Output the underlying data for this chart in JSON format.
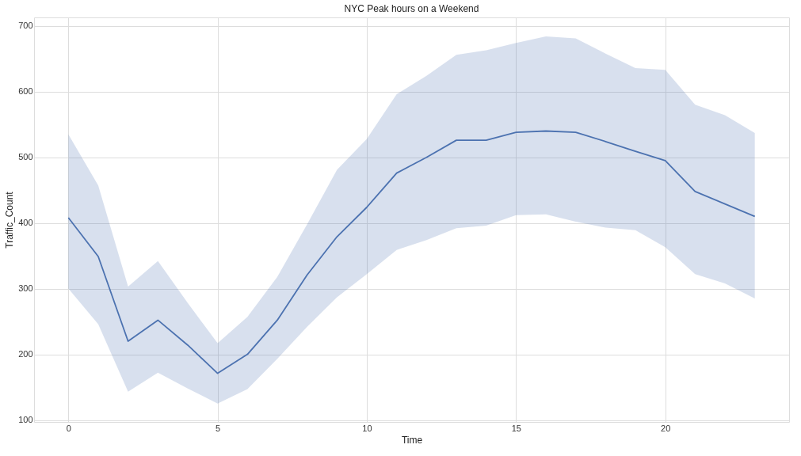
{
  "chart_data": {
    "type": "line",
    "title": "NYC Peak hours on a Weekend",
    "xlabel": "Time",
    "ylabel": "Traffic_Count",
    "x": [
      0,
      1,
      2,
      3,
      4,
      5,
      6,
      7,
      8,
      9,
      10,
      11,
      12,
      13,
      14,
      15,
      16,
      17,
      18,
      19,
      20,
      21,
      22,
      23
    ],
    "series": [
      {
        "color": "#4c72b0",
        "values": [
          408,
          349,
          220,
          252,
          214,
          171,
          200,
          252,
          321,
          379,
          424,
          476,
          500,
          526,
          526,
          538,
          540,
          538,
          524,
          509,
          495,
          448,
          429,
          410
        ],
        "lower": [
          300,
          246,
          143,
          172,
          148,
          125,
          147,
          193,
          242,
          287,
          322,
          359,
          374,
          392,
          396,
          412,
          413,
          402,
          393,
          389,
          363,
          322,
          308,
          285
        ],
        "upper": [
          535,
          457,
          303,
          342,
          278,
          217,
          257,
          318,
          398,
          481,
          528,
          596,
          624,
          656,
          663,
          674,
          684,
          681,
          658,
          636,
          633,
          580,
          564,
          537
        ]
      }
    ],
    "xlim": [
      -1.15,
      24.15
    ],
    "xticks": [
      0,
      5,
      10,
      15,
      20
    ],
    "ylim": [
      97,
      713
    ],
    "yticks": [
      100,
      200,
      300,
      400,
      500,
      600,
      700
    ],
    "grid": true,
    "line_style": "solid",
    "marker": "none"
  }
}
